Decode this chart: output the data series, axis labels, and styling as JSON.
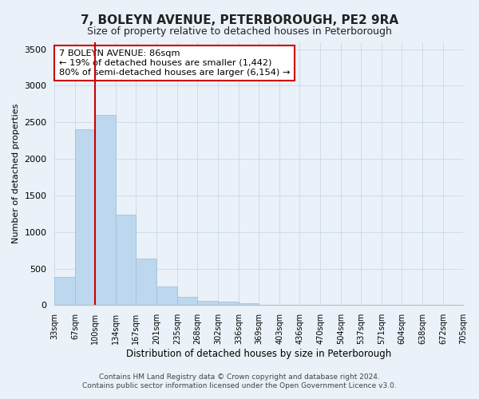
{
  "title": "7, BOLEYN AVENUE, PETERBOROUGH, PE2 9RA",
  "subtitle": "Size of property relative to detached houses in Peterborough",
  "xlabel": "Distribution of detached houses by size in Peterborough",
  "ylabel": "Number of detached properties",
  "bar_values": [
    390,
    2400,
    2600,
    1240,
    640,
    255,
    110,
    60,
    45,
    30,
    0,
    0,
    0,
    0,
    0,
    0,
    0,
    0,
    0,
    0
  ],
  "bar_labels": [
    "33sqm",
    "67sqm",
    "100sqm",
    "134sqm",
    "167sqm",
    "201sqm",
    "235sqm",
    "268sqm",
    "302sqm",
    "336sqm",
    "369sqm",
    "403sqm",
    "436sqm",
    "470sqm",
    "504sqm",
    "537sqm",
    "571sqm",
    "604sqm",
    "638sqm",
    "672sqm",
    "705sqm"
  ],
  "bar_color": "#bdd7ee",
  "bar_edge_color": "#9bbdd8",
  "grid_color": "#c8d8ea",
  "background_color": "#eaf1f8",
  "vline_color": "#cc0000",
  "annotation_text": "7 BOLEYN AVENUE: 86sqm\n← 19% of detached houses are smaller (1,442)\n80% of semi-detached houses are larger (6,154) →",
  "annotation_box_facecolor": "#ffffff",
  "annotation_box_edge_color": "#cc0000",
  "ylim": [
    0,
    3600
  ],
  "yticks": [
    0,
    500,
    1000,
    1500,
    2000,
    2500,
    3000,
    3500
  ],
  "footer_line1": "Contains HM Land Registry data © Crown copyright and database right 2024.",
  "footer_line2": "Contains public sector information licensed under the Open Government Licence v3.0.",
  "bin_edges": [
    33,
    67,
    100,
    134,
    167,
    201,
    235,
    268,
    302,
    336,
    369,
    403,
    436,
    470,
    504,
    537,
    571,
    604,
    638,
    672,
    705
  ]
}
